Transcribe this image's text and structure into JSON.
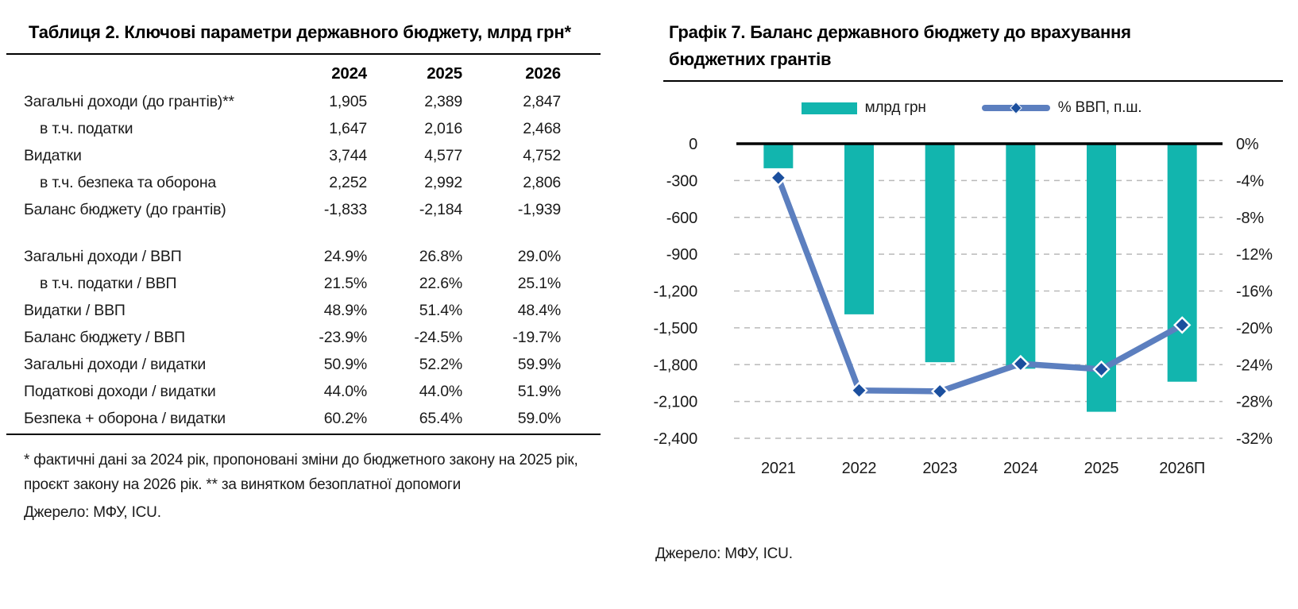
{
  "table_panel": {
    "title": "Таблиця 2. Ключові параметри державного бюджету, млрд грн*",
    "columns": [
      "2024",
      "2025",
      "2026"
    ],
    "rows": [
      {
        "label": "Загальні доходи (до грантів)**",
        "indent": false,
        "values": [
          "1,905",
          "2,389",
          "2,847"
        ]
      },
      {
        "label": "в т.ч. податки",
        "indent": true,
        "values": [
          "1,647",
          "2,016",
          "2,468"
        ]
      },
      {
        "label": "Видатки",
        "indent": false,
        "values": [
          "3,744",
          "4,577",
          "4,752"
        ]
      },
      {
        "label": "в т.ч. безпека та оборона",
        "indent": true,
        "values": [
          "2,252",
          "2,992",
          "2,806"
        ]
      },
      {
        "label": "Баланс бюджету (до грантів)",
        "indent": false,
        "values": [
          "-1,833",
          "-2,184",
          "-1,939"
        ]
      },
      {
        "label": "",
        "spacer": true,
        "values": [
          "",
          "",
          ""
        ]
      },
      {
        "label": "Загальні доходи / ВВП",
        "indent": false,
        "values": [
          "24.9%",
          "26.8%",
          "29.0%"
        ]
      },
      {
        "label": "в т.ч. податки / ВВП",
        "indent": true,
        "values": [
          "21.5%",
          "22.6%",
          "25.1%"
        ]
      },
      {
        "label": "Видатки / ВВП",
        "indent": false,
        "values": [
          "48.9%",
          "51.4%",
          "48.4%"
        ]
      },
      {
        "label": "Баланс бюджету / ВВП",
        "indent": false,
        "values": [
          "-23.9%",
          "-24.5%",
          "-19.7%"
        ]
      },
      {
        "label": "Загальні доходи / видатки",
        "indent": false,
        "values": [
          "50.9%",
          "52.2%",
          "59.9%"
        ]
      },
      {
        "label": "Податкові доходи / видатки",
        "indent": false,
        "values": [
          "44.0%",
          "44.0%",
          "51.9%"
        ]
      },
      {
        "label": "Безпека + оборона / видатки",
        "indent": false,
        "values": [
          "60.2%",
          "65.4%",
          "59.0%"
        ]
      }
    ],
    "footnote": "* фактичні дані за 2024 рік, пропоновані зміни до бюджетного закону на 2025 рік, проєкт закону на 2026 рік.  ** за винятком безоплатної допомоги",
    "source": "Джерело: МФУ, ICU."
  },
  "chart_panel": {
    "title": "Графік 7. Баланс державного бюджету до врахування бюджетних грантів",
    "legend": [
      {
        "label": "млрд грн",
        "swatch": "bar-swatch"
      },
      {
        "label": "% ВВП, п.ш.",
        "swatch": "line-swatch"
      }
    ],
    "source": "Джерело: МФУ, ICU."
  },
  "chart_data": {
    "type": "bar+line",
    "title": "Графік 7. Баланс державного бюджету до врахування бюджетних грантів",
    "categories": [
      "2021",
      "2022",
      "2023",
      "2024",
      "2025",
      "2026П"
    ],
    "series": [
      {
        "name": "млрд грн",
        "type": "bar",
        "axis": "left",
        "color": "#12b5ae",
        "values": [
          -200,
          -1390,
          -1780,
          -1833,
          -2184,
          -1939
        ]
      },
      {
        "name": "% ВВП, п.ш.",
        "type": "line",
        "axis": "right",
        "color": "#5c7fbf",
        "marker": "diamond",
        "marker_color": "#1b4f9e",
        "values": [
          -3.7,
          -26.8,
          -26.9,
          -23.9,
          -24.5,
          -19.7
        ]
      }
    ],
    "left_axis": {
      "min": -2400,
      "max": 0,
      "tick_step": 300,
      "tick_labels": [
        "0",
        "-300",
        "-600",
        "-900",
        "-1,200",
        "-1,500",
        "-1,800",
        "-2,100",
        "-2,400"
      ]
    },
    "right_axis": {
      "min": -32,
      "max": 0,
      "tick_step": 4,
      "tick_labels": [
        "0%",
        "-4%",
        "-8%",
        "-12%",
        "-16%",
        "-20%",
        "-24%",
        "-28%",
        "-32%"
      ]
    },
    "grid": "dashed-horizontal",
    "grid_color": "#b9b9b9",
    "zero_line_color": "#000000",
    "legend_position": "top"
  }
}
